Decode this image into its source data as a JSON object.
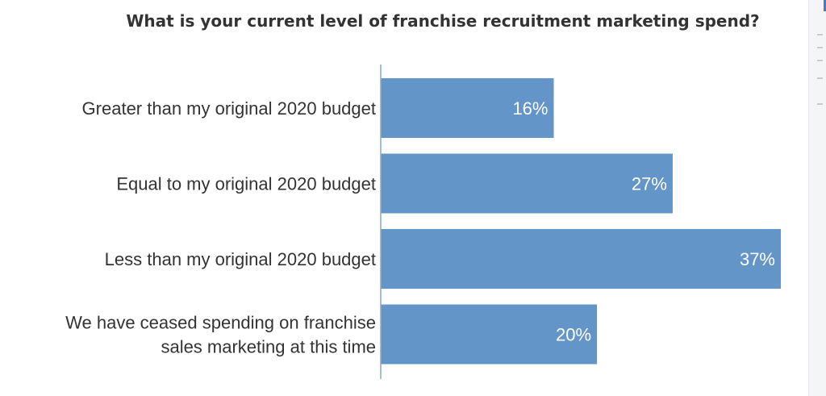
{
  "chart_data": {
    "type": "bar",
    "orientation": "horizontal",
    "title": "What is your current level of franchise recruitment marketing spend?",
    "categories": [
      [
        "Greater than my original 2020 budget"
      ],
      [
        "Equal to my original 2020 budget"
      ],
      [
        "Less than my original 2020 budget"
      ],
      [
        "We have ceased spending on franchise",
        "sales marketing at this time"
      ]
    ],
    "values": [
      16,
      27,
      37,
      20
    ],
    "value_labels": [
      "16%",
      "27%",
      "37%",
      "20%"
    ],
    "unit": "%",
    "xlim": [
      0,
      37
    ],
    "grid": false,
    "legend": "none",
    "bar_color": "#6495c8",
    "label_color": "#ffffff",
    "axis_color": "#8aa7cc",
    "text_color": "#333333"
  }
}
